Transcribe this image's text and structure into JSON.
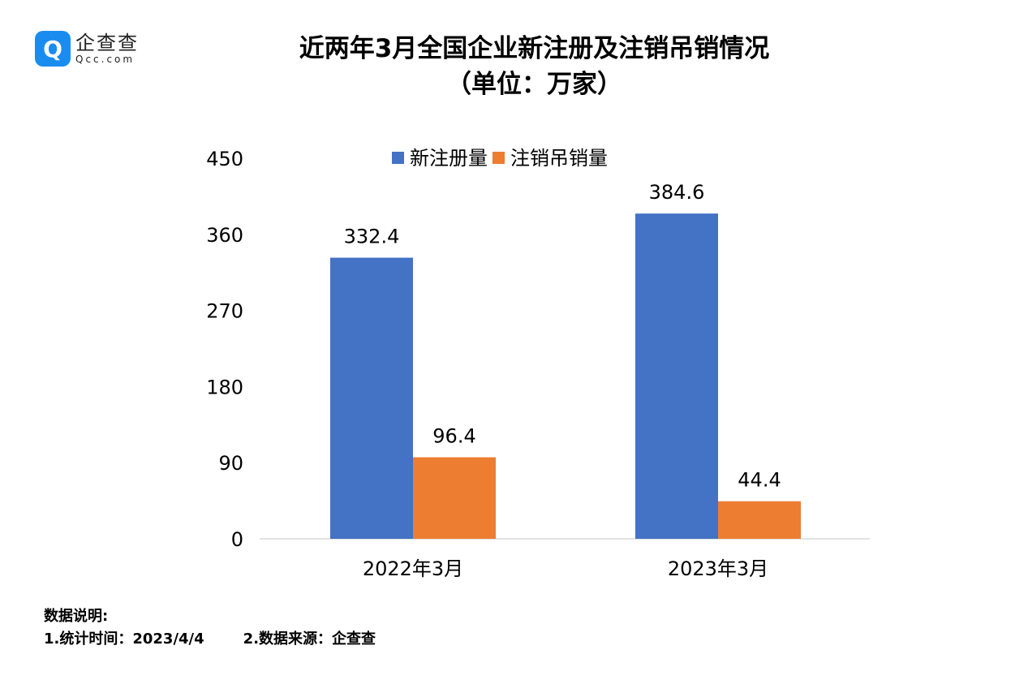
{
  "logo": {
    "mark": "Q",
    "name_cn": "企查查",
    "name_en": "Qcc.com"
  },
  "title_line1": "近两年3月全国企业新注册及注销吊销情况",
  "title_line2": "（单位：万家）",
  "notes": {
    "heading": "数据说明:",
    "item1": "1.统计时间：2023/4/4",
    "item2": "2.数据来源：企查查"
  },
  "chart_data": {
    "type": "bar",
    "title": "近两年3月全国企业新注册及注销吊销情况（单位：万家）",
    "categories": [
      "2022年3月",
      "2023年3月"
    ],
    "series": [
      {
        "name": "新注册量",
        "color": "#4472c4",
        "values": [
          332.4,
          384.6
        ]
      },
      {
        "name": "注销吊销量",
        "color": "#ed7d31",
        "values": [
          96.4,
          44.4
        ]
      }
    ],
    "ylim": [
      0,
      450
    ],
    "yticks": [
      0,
      90,
      180,
      270,
      360,
      450
    ],
    "xlabel": "",
    "ylabel": "",
    "grid": false,
    "legend": "top-center"
  }
}
